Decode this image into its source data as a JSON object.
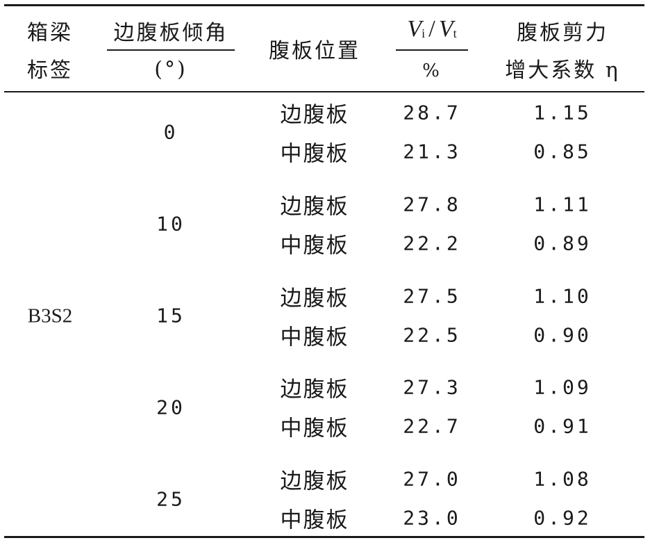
{
  "header": {
    "col1": [
      "箱梁",
      "标签"
    ],
    "col2_top": "边腹板倾角",
    "col2_bottom": "(°)",
    "col3": "腹板位置",
    "col4_top_v1": "V",
    "col4_top_sub1": "i",
    "col4_top_slash": "/",
    "col4_top_v2": "V",
    "col4_top_sub2": "t",
    "col4_bottom": "%",
    "col5": [
      "腹板剪力",
      "增大系数 η"
    ]
  },
  "label": "B3S2",
  "groups": [
    {
      "angle": "0",
      "rows": [
        {
          "position": "边腹板",
          "ratio": "28.7",
          "eta": "1.15"
        },
        {
          "position": "中腹板",
          "ratio": "21.3",
          "eta": "0.85"
        }
      ]
    },
    {
      "angle": "10",
      "rows": [
        {
          "position": "边腹板",
          "ratio": "27.8",
          "eta": "1.11"
        },
        {
          "position": "中腹板",
          "ratio": "22.2",
          "eta": "0.89"
        }
      ]
    },
    {
      "angle": "15",
      "rows": [
        {
          "position": "边腹板",
          "ratio": "27.5",
          "eta": "1.10"
        },
        {
          "position": "中腹板",
          "ratio": "22.5",
          "eta": "0.90"
        }
      ]
    },
    {
      "angle": "20",
      "rows": [
        {
          "position": "边腹板",
          "ratio": "27.3",
          "eta": "1.09"
        },
        {
          "position": "中腹板",
          "ratio": "22.7",
          "eta": "0.91"
        }
      ]
    },
    {
      "angle": "25",
      "rows": [
        {
          "position": "边腹板",
          "ratio": "27.0",
          "eta": "1.08"
        },
        {
          "position": "中腹板",
          "ratio": "23.0",
          "eta": "0.92"
        }
      ]
    }
  ]
}
